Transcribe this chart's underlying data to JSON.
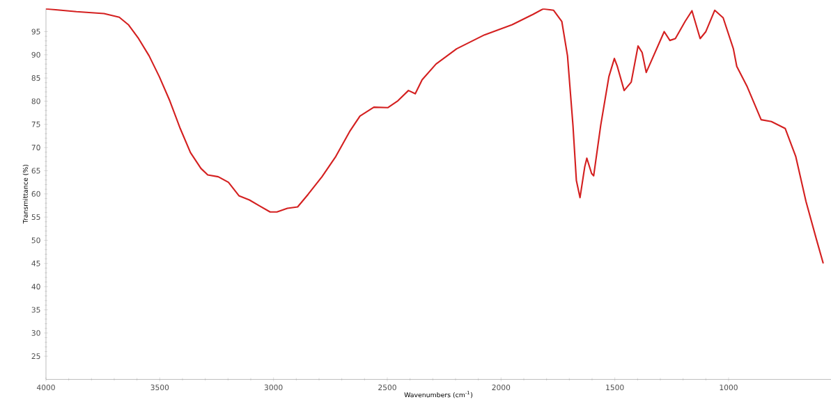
{
  "chart_data": {
    "type": "line",
    "xlabel": "Wavenumbers (cm$^{-1}$)",
    "ylabel": "Transmittance (%)",
    "xlim": [
      4000,
      550
    ],
    "ylim": [
      20,
      100
    ],
    "xticks": [
      4000,
      3500,
      3000,
      2500,
      2000,
      1500,
      1000
    ],
    "yticks": [
      25,
      30,
      35,
      40,
      45,
      50,
      55,
      60,
      65,
      70,
      75,
      80,
      85,
      90,
      95
    ],
    "grid": false,
    "marker": "none",
    "line_style": "solid",
    "series": [
      {
        "color": "#d42020",
        "x": [
          4000,
          3866,
          3745,
          3678,
          3638,
          3593,
          3547,
          3502,
          3456,
          3410,
          3365,
          3319,
          3289,
          3243,
          3198,
          3152,
          3106,
          3061,
          3015,
          2985,
          2939,
          2894,
          2848,
          2787,
          2726,
          2666,
          2620,
          2559,
          2498,
          2453,
          2407,
          2377,
          2347,
          2286,
          2195,
          2073,
          1951,
          1860,
          1815,
          1769,
          1733,
          1708,
          1684,
          1669,
          1653,
          1632,
          1623,
          1602,
          1593,
          1562,
          1526,
          1502,
          1489,
          1459,
          1428,
          1398,
          1380,
          1362,
          1343,
          1283,
          1258,
          1234,
          1191,
          1161,
          1125,
          1100,
          1061,
          1024,
          979,
          964,
          918,
          857,
          812,
          751,
          705,
          660,
          614,
          584
        ],
        "values": [
          99.9,
          99.3,
          98.9,
          98.1,
          96.5,
          93.5,
          89.8,
          85.3,
          80.1,
          74.1,
          68.9,
          65.5,
          64.1,
          63.7,
          62.5,
          59.6,
          58.7,
          57.4,
          56.1,
          56.1,
          56.9,
          57.2,
          59.9,
          63.7,
          68.1,
          73.4,
          76.8,
          78.7,
          78.6,
          80.1,
          82.3,
          81.6,
          84.6,
          88.0,
          91.3,
          94.3,
          96.5,
          98.7,
          99.9,
          99.6,
          97.2,
          89.8,
          74.8,
          62.9,
          59.2,
          65.9,
          67.7,
          64.4,
          63.9,
          74.8,
          85.3,
          89.2,
          87.5,
          82.3,
          84.1,
          91.9,
          90.5,
          86.2,
          88.3,
          95.0,
          93.1,
          93.5,
          97.2,
          99.5,
          93.5,
          95.0,
          99.6,
          98.0,
          91.3,
          87.5,
          83.1,
          76.0,
          75.6,
          74.1,
          68.1,
          58.4,
          50.2,
          45.0
        ]
      }
    ]
  }
}
